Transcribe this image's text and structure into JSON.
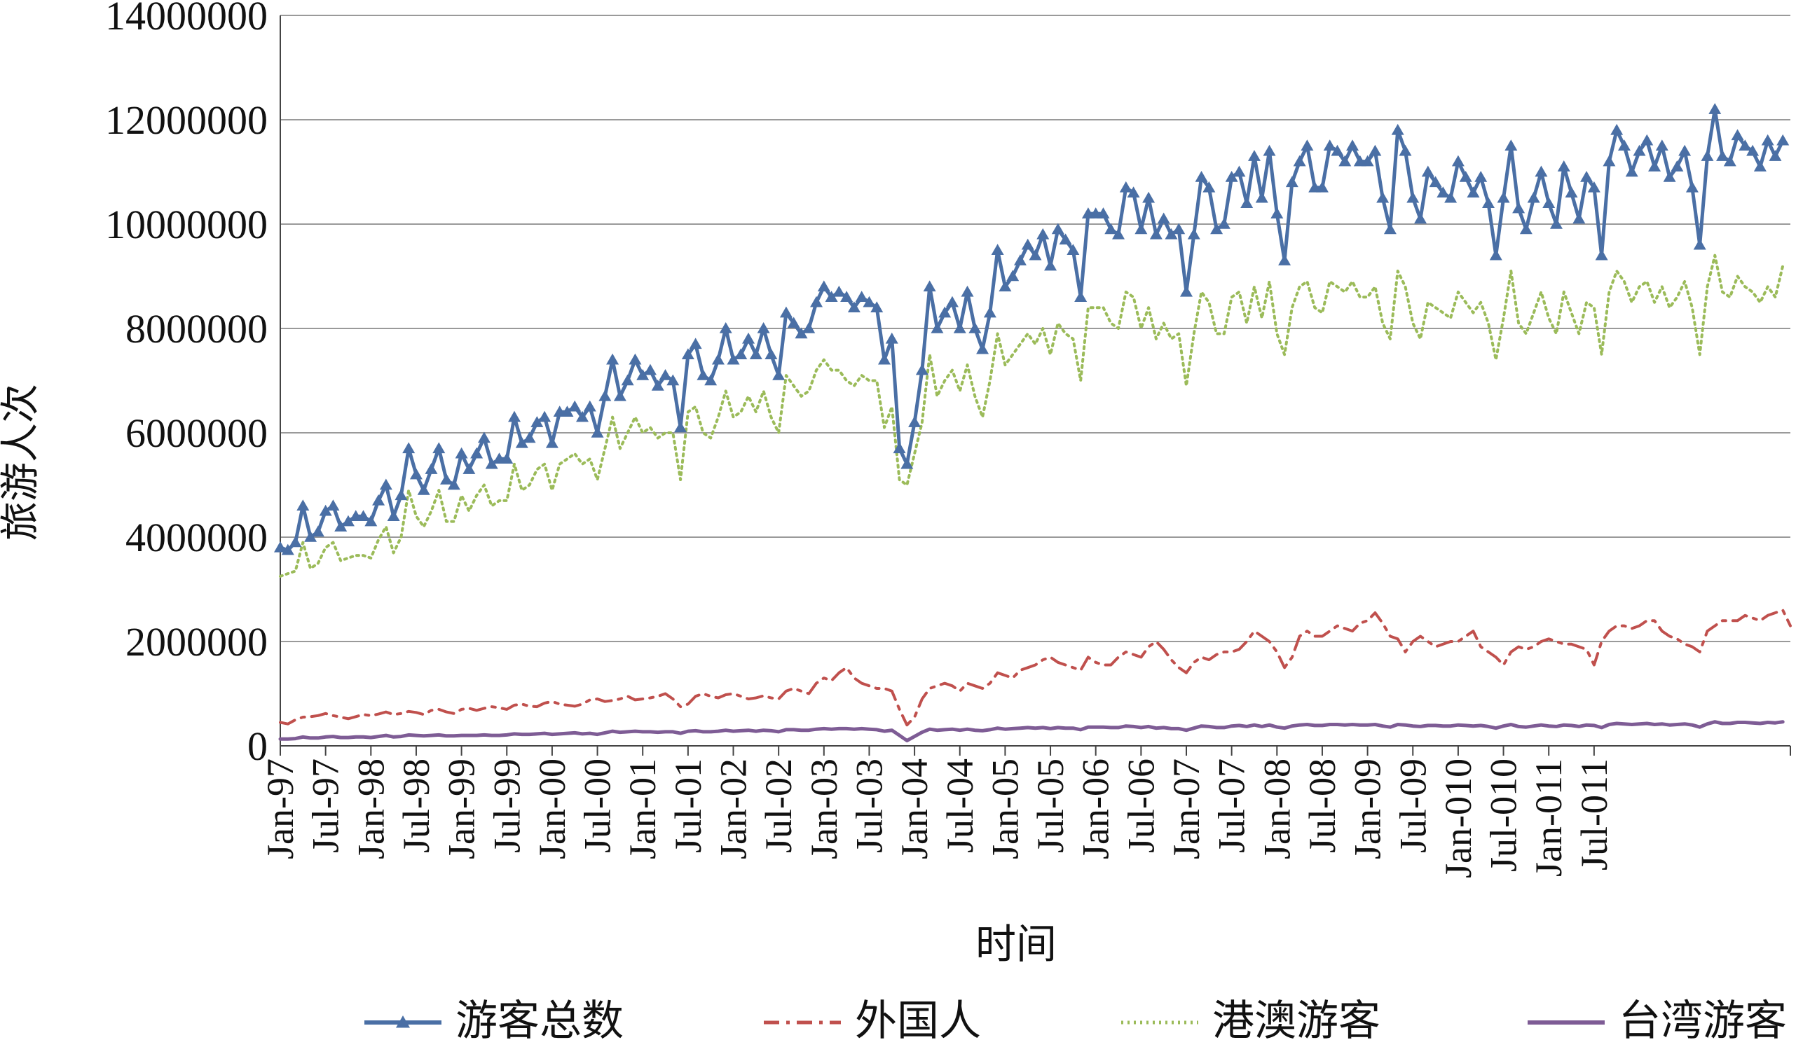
{
  "chart_data": {
    "type": "line",
    "title": "",
    "xlabel": "时间",
    "ylabel": "旅游人次",
    "ylim": [
      0,
      14000000
    ],
    "yticks": [
      0,
      2000000,
      4000000,
      6000000,
      8000000,
      10000000,
      12000000,
      14000000
    ],
    "ytick_labels": [
      "0",
      "2000000",
      "4000000",
      "6000000",
      "8000000",
      "10000000",
      "12000000",
      "14000000"
    ],
    "grid": true,
    "legend_position": "bottom",
    "x_start": "Jan-97",
    "x_ticks": [
      "Jan-97",
      "Jul-97",
      "Jan-98",
      "Jul-98",
      "Jan-99",
      "Jul-99",
      "Jan-00",
      "Jul-00",
      "Jan-01",
      "Jul-01",
      "Jan-02",
      "Jul-02",
      "Jan-03",
      "Jul-03",
      "Jan-04",
      "Jul-04",
      "Jan-05",
      "Jul-05",
      "Jan-06",
      "Jul-06",
      "Jan-07",
      "Jul-07",
      "Jan-08",
      "Jul-08",
      "Jan-09",
      "Jul-09",
      "Jan-010",
      "Jul-010",
      "Jan-011",
      "Jul-011"
    ],
    "series": [
      {
        "name": "游客总数",
        "color": "#4A6FA5",
        "values": [
          3800000,
          3750000,
          3900000,
          4600000,
          4000000,
          4100000,
          4500000,
          4600000,
          4200000,
          4300000,
          4400000,
          4400000,
          4300000,
          4700000,
          5000000,
          4400000,
          4800000,
          5700000,
          5200000,
          4900000,
          5300000,
          5700000,
          5100000,
          5000000,
          5600000,
          5300000,
          5600000,
          5900000,
          5400000,
          5500000,
          5500000,
          6300000,
          5800000,
          5900000,
          6200000,
          6300000,
          5800000,
          6400000,
          6400000,
          6500000,
          6300000,
          6500000,
          6000000,
          6700000,
          7400000,
          6700000,
          7000000,
          7400000,
          7100000,
          7200000,
          6900000,
          7100000,
          7000000,
          6100000,
          7500000,
          7700000,
          7100000,
          7000000,
          7400000,
          8000000,
          7400000,
          7500000,
          7800000,
          7500000,
          8000000,
          7500000,
          7100000,
          8300000,
          8100000,
          7900000,
          8000000,
          8500000,
          8800000,
          8600000,
          8700000,
          8600000,
          8400000,
          8600000,
          8500000,
          8400000,
          7400000,
          7800000,
          5700000,
          5400000,
          6200000,
          7200000,
          8800000,
          8000000,
          8300000,
          8500000,
          8000000,
          8700000,
          8000000,
          7600000,
          8300000,
          9500000,
          8800000,
          9000000,
          9300000,
          9600000,
          9400000,
          9800000,
          9200000,
          9900000,
          9700000,
          9500000,
          8600000,
          10200000,
          10200000,
          10200000,
          9900000,
          9800000,
          10700000,
          10600000,
          9900000,
          10500000,
          9800000,
          10100000,
          9800000,
          9900000,
          8700000,
          9800000,
          10900000,
          10700000,
          9900000,
          10000000,
          10900000,
          11000000,
          10400000,
          11300000,
          10500000,
          11400000,
          10200000,
          9300000,
          10800000,
          11200000,
          11500000,
          10700000,
          10700000,
          11500000,
          11400000,
          11200000,
          11500000,
          11200000,
          11200000,
          11400000,
          10500000,
          9900000,
          11800000,
          11400000,
          10500000,
          10100000,
          11000000,
          10800000,
          10600000,
          10500000,
          11200000,
          10900000,
          10600000,
          10900000,
          10400000,
          9400000,
          10500000,
          11500000,
          10300000,
          9900000,
          10500000,
          11000000,
          10400000,
          10000000,
          11100000,
          10600000,
          10100000,
          10900000,
          10700000,
          9400000,
          11200000,
          11800000,
          11500000,
          11000000,
          11400000,
          11600000,
          11100000,
          11500000,
          10900000,
          11100000,
          11400000,
          10700000,
          9600000,
          11300000,
          12200000,
          11300000,
          11200000,
          11700000,
          11500000,
          11400000,
          11100000,
          11600000,
          11300000,
          11600000
        ]
      },
      {
        "name": "外国人",
        "color": "#C0504D",
        "values": [
          450000,
          420000,
          500000,
          550000,
          560000,
          580000,
          620000,
          580000,
          550000,
          520000,
          560000,
          600000,
          580000,
          610000,
          650000,
          600000,
          620000,
          660000,
          640000,
          600000,
          680000,
          700000,
          650000,
          620000,
          700000,
          720000,
          680000,
          720000,
          750000,
          730000,
          700000,
          780000,
          800000,
          760000,
          750000,
          820000,
          850000,
          800000,
          780000,
          760000,
          800000,
          880000,
          900000,
          850000,
          870000,
          900000,
          950000,
          880000,
          900000,
          920000,
          950000,
          1000000,
          900000,
          750000,
          800000,
          950000,
          1000000,
          950000,
          920000,
          980000,
          1000000,
          950000,
          900000,
          920000,
          960000,
          920000,
          900000,
          1050000,
          1100000,
          1050000,
          1000000,
          1200000,
          1300000,
          1250000,
          1400000,
          1500000,
          1300000,
          1200000,
          1150000,
          1100000,
          1100000,
          1050000,
          700000,
          400000,
          550000,
          900000,
          1100000,
          1150000,
          1200000,
          1150000,
          1050000,
          1200000,
          1150000,
          1100000,
          1200000,
          1400000,
          1350000,
          1300000,
          1450000,
          1500000,
          1550000,
          1650000,
          1700000,
          1600000,
          1550000,
          1500000,
          1450000,
          1700000,
          1600000,
          1550000,
          1550000,
          1700000,
          1800000,
          1750000,
          1700000,
          1900000,
          2000000,
          1850000,
          1650000,
          1500000,
          1400000,
          1600000,
          1700000,
          1650000,
          1750000,
          1800000,
          1800000,
          1850000,
          2000000,
          2200000,
          2100000,
          2000000,
          1800000,
          1500000,
          1700000,
          2100000,
          2200000,
          2100000,
          2100000,
          2200000,
          2300000,
          2250000,
          2200000,
          2350000,
          2400000,
          2550000,
          2350000,
          2100000,
          2050000,
          1800000,
          2000000,
          2100000,
          2000000,
          1900000,
          1950000,
          2000000,
          2000000,
          2100000,
          2200000,
          1900000,
          1800000,
          1700000,
          1550000,
          1800000,
          1900000,
          1850000,
          1900000,
          2000000,
          2050000,
          2000000,
          1950000,
          1950000,
          1900000,
          1850000,
          1550000,
          2000000,
          2200000,
          2300000,
          2300000,
          2250000,
          2300000,
          2400000,
          2400000,
          2200000,
          2100000,
          2050000,
          1950000,
          1900000,
          1800000,
          2200000,
          2300000,
          2400000,
          2400000,
          2400000,
          2500000,
          2450000,
          2400000,
          2500000,
          2550000,
          2600000,
          2300000
        ]
      },
      {
        "name": "港澳游客",
        "color": "#9BBB59",
        "values": [
          3250000,
          3300000,
          3350000,
          3900000,
          3400000,
          3500000,
          3800000,
          3900000,
          3550000,
          3600000,
          3650000,
          3650000,
          3600000,
          3950000,
          4200000,
          3700000,
          4000000,
          4900000,
          4400000,
          4200000,
          4500000,
          4900000,
          4300000,
          4300000,
          4800000,
          4500000,
          4800000,
          5000000,
          4600000,
          4700000,
          4700000,
          5400000,
          4900000,
          5000000,
          5300000,
          5400000,
          4900000,
          5400000,
          5500000,
          5600000,
          5400000,
          5500000,
          5100000,
          5700000,
          6300000,
          5700000,
          6000000,
          6300000,
          6000000,
          6100000,
          5900000,
          6000000,
          6000000,
          5100000,
          6400000,
          6500000,
          6000000,
          5900000,
          6300000,
          6800000,
          6300000,
          6400000,
          6700000,
          6400000,
          6800000,
          6300000,
          6000000,
          7100000,
          6900000,
          6700000,
          6800000,
          7200000,
          7400000,
          7200000,
          7200000,
          7000000,
          6900000,
          7100000,
          7000000,
          7000000,
          6100000,
          6500000,
          5100000,
          5000000,
          5600000,
          6200000,
          7500000,
          6700000,
          7000000,
          7200000,
          6800000,
          7300000,
          6700000,
          6300000,
          7000000,
          7900000,
          7300000,
          7500000,
          7700000,
          7900000,
          7700000,
          8000000,
          7500000,
          8100000,
          7900000,
          7800000,
          7000000,
          8400000,
          8400000,
          8400000,
          8100000,
          8000000,
          8700000,
          8600000,
          8000000,
          8400000,
          7800000,
          8100000,
          7800000,
          7900000,
          6900000,
          7900000,
          8700000,
          8500000,
          7900000,
          7900000,
          8600000,
          8700000,
          8100000,
          8800000,
          8200000,
          8900000,
          7900000,
          7500000,
          8400000,
          8800000,
          8900000,
          8400000,
          8300000,
          8900000,
          8800000,
          8700000,
          8900000,
          8600000,
          8600000,
          8800000,
          8100000,
          7800000,
          9100000,
          8800000,
          8100000,
          7800000,
          8500000,
          8400000,
          8300000,
          8200000,
          8700000,
          8500000,
          8300000,
          8500000,
          8100000,
          7400000,
          8200000,
          9100000,
          8100000,
          7900000,
          8300000,
          8700000,
          8200000,
          7900000,
          8700000,
          8300000,
          7900000,
          8500000,
          8400000,
          7500000,
          8700000,
          9100000,
          8900000,
          8500000,
          8800000,
          8900000,
          8500000,
          8800000,
          8400000,
          8600000,
          8900000,
          8400000,
          7500000,
          8800000,
          9400000,
          8700000,
          8600000,
          9000000,
          8800000,
          8700000,
          8500000,
          8800000,
          8600000,
          9200000
        ]
      },
      {
        "name": "台湾游客",
        "color": "#7E5C95",
        "values": [
          130000,
          130000,
          140000,
          170000,
          150000,
          150000,
          170000,
          180000,
          160000,
          160000,
          170000,
          170000,
          160000,
          180000,
          200000,
          170000,
          180000,
          210000,
          200000,
          190000,
          200000,
          210000,
          190000,
          190000,
          200000,
          200000,
          200000,
          210000,
          200000,
          200000,
          210000,
          230000,
          220000,
          220000,
          230000,
          240000,
          220000,
          230000,
          240000,
          250000,
          230000,
          240000,
          220000,
          250000,
          280000,
          260000,
          270000,
          280000,
          270000,
          270000,
          260000,
          270000,
          270000,
          240000,
          280000,
          290000,
          270000,
          270000,
          280000,
          300000,
          280000,
          290000,
          300000,
          280000,
          300000,
          290000,
          270000,
          310000,
          310000,
          300000,
          300000,
          320000,
          330000,
          320000,
          330000,
          330000,
          320000,
          330000,
          320000,
          310000,
          280000,
          300000,
          200000,
          100000,
          180000,
          260000,
          320000,
          300000,
          310000,
          320000,
          300000,
          320000,
          300000,
          290000,
          310000,
          340000,
          320000,
          330000,
          340000,
          350000,
          340000,
          350000,
          330000,
          350000,
          340000,
          340000,
          310000,
          360000,
          360000,
          360000,
          350000,
          350000,
          380000,
          370000,
          350000,
          370000,
          340000,
          350000,
          330000,
          330000,
          300000,
          340000,
          380000,
          370000,
          350000,
          350000,
          380000,
          390000,
          370000,
          400000,
          370000,
          400000,
          360000,
          340000,
          380000,
          400000,
          410000,
          390000,
          390000,
          410000,
          410000,
          400000,
          410000,
          400000,
          400000,
          410000,
          380000,
          360000,
          410000,
          400000,
          380000,
          370000,
          390000,
          390000,
          380000,
          380000,
          400000,
          390000,
          380000,
          390000,
          370000,
          340000,
          380000,
          410000,
          370000,
          360000,
          380000,
          400000,
          380000,
          370000,
          400000,
          390000,
          370000,
          400000,
          390000,
          350000,
          410000,
          430000,
          420000,
          410000,
          420000,
          430000,
          410000,
          420000,
          400000,
          410000,
          420000,
          400000,
          360000,
          420000,
          460000,
          430000,
          430000,
          450000,
          450000,
          440000,
          430000,
          450000,
          440000,
          460000
        ]
      }
    ]
  }
}
